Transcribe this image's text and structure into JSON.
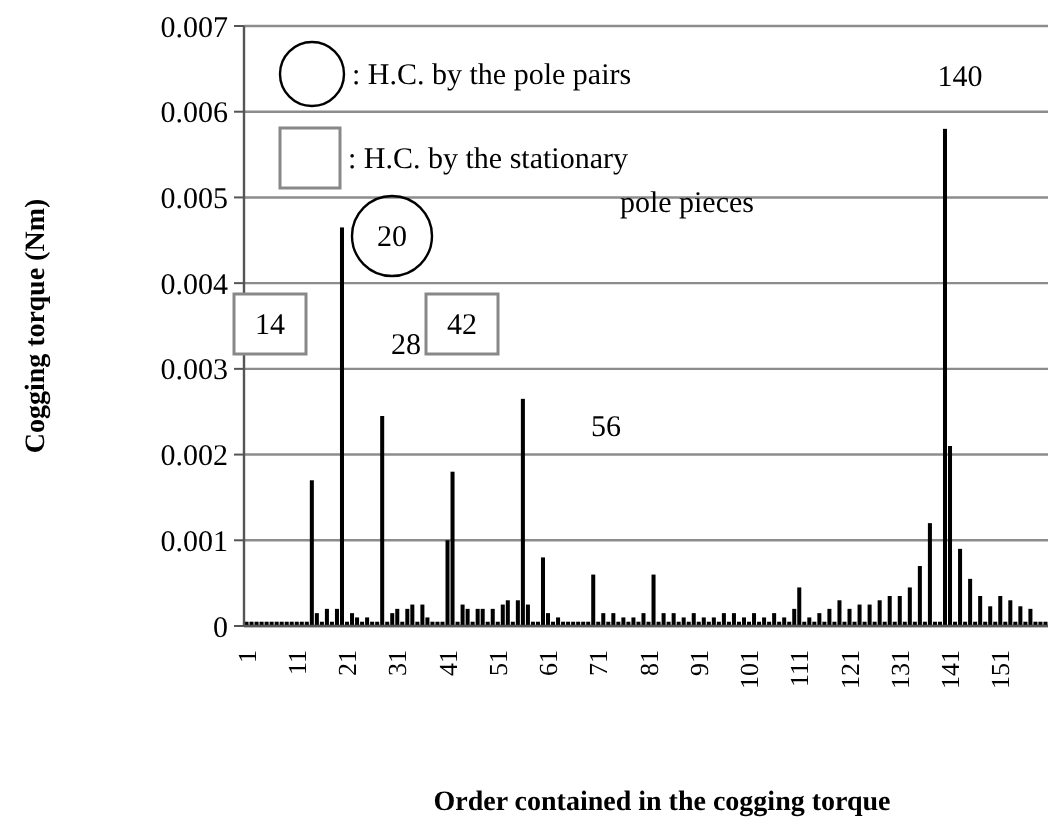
{
  "chart_data": {
    "type": "bar",
    "xlabel": "Order contained in the cogging torque",
    "ylabel": "Cogging torque (Nm)",
    "categories": [
      "1",
      null,
      null,
      null,
      null,
      null,
      null,
      null,
      null,
      null,
      "11",
      null,
      null,
      null,
      null,
      null,
      null,
      null,
      null,
      null,
      "21",
      null,
      null,
      null,
      null,
      null,
      null,
      null,
      null,
      null,
      "31",
      null,
      null,
      null,
      null,
      null,
      null,
      null,
      null,
      null,
      "41",
      null,
      null,
      null,
      null,
      null,
      null,
      null,
      null,
      null,
      "51",
      null,
      null,
      null,
      null,
      null,
      null,
      null,
      null,
      null,
      "61",
      null,
      null,
      null,
      null,
      null,
      null,
      null,
      null,
      null,
      "71",
      null,
      null,
      null,
      null,
      null,
      null,
      null,
      null,
      null,
      "81",
      null,
      null,
      null,
      null,
      null,
      null,
      null,
      null,
      null,
      "91",
      null,
      null,
      null,
      null,
      null,
      null,
      null,
      null,
      null,
      "101",
      null,
      null,
      null,
      null,
      null,
      null,
      null,
      null,
      null,
      "111",
      null,
      null,
      null,
      null,
      null,
      null,
      null,
      null,
      null,
      "121",
      null,
      null,
      null,
      null,
      null,
      null,
      null,
      null,
      null,
      "131",
      null,
      null,
      null,
      null,
      null,
      null,
      null,
      null,
      null,
      "141",
      null,
      null,
      null,
      null,
      null,
      null,
      null,
      null,
      null,
      "151",
      null,
      null,
      null,
      null,
      null,
      null,
      null,
      null,
      null
    ],
    "values": [
      5e-05,
      5e-05,
      5e-05,
      5e-05,
      5e-05,
      5e-05,
      5e-05,
      5e-05,
      5e-05,
      5e-05,
      5e-05,
      5e-05,
      5e-05,
      0.0017,
      0.00015,
      5e-05,
      0.0002,
      5e-05,
      0.0002,
      0.00465,
      5e-05,
      0.00015,
      0.0001,
      5e-05,
      0.0001,
      5e-05,
      5e-05,
      0.00245,
      5e-05,
      0.00015,
      0.0002,
      5e-05,
      0.0002,
      0.00025,
      5e-05,
      0.00025,
      0.0001,
      5e-05,
      5e-05,
      5e-05,
      0.001,
      0.0018,
      5e-05,
      0.00025,
      0.0002,
      5e-05,
      0.0002,
      0.0002,
      5e-05,
      0.0002,
      5e-05,
      0.00025,
      0.0003,
      5e-05,
      0.0003,
      0.00265,
      0.00025,
      5e-05,
      5e-05,
      0.0008,
      0.00015,
      5e-05,
      0.0001,
      5e-05,
      5e-05,
      5e-05,
      5e-05,
      5e-05,
      5e-05,
      0.0006,
      5e-05,
      0.00015,
      5e-05,
      0.00015,
      5e-05,
      0.0001,
      5e-05,
      0.0001,
      5e-05,
      0.00015,
      5e-05,
      0.0006,
      5e-05,
      0.00015,
      5e-05,
      0.00015,
      5e-05,
      0.0001,
      5e-05,
      0.00015,
      5e-05,
      0.0001,
      5e-05,
      0.0001,
      5e-05,
      0.00015,
      5e-05,
      0.00015,
      5e-05,
      0.0001,
      5e-05,
      0.00015,
      5e-05,
      0.0001,
      5e-05,
      0.00015,
      5e-05,
      0.0001,
      5e-05,
      0.0002,
      0.00045,
      5e-05,
      0.0001,
      5e-05,
      0.00015,
      5e-05,
      0.0002,
      5e-05,
      0.0003,
      5e-05,
      0.0002,
      5e-05,
      0.00025,
      5e-05,
      0.00025,
      5e-05,
      0.0003,
      5e-05,
      0.00035,
      5e-05,
      0.00035,
      5e-05,
      0.00045,
      5e-05,
      0.0007,
      5e-05,
      0.0012,
      5e-05,
      5e-05,
      0.0058,
      0.0021,
      5e-05,
      0.0009,
      5e-05,
      0.00055,
      5e-05,
      0.00035,
      5e-05,
      0.00023,
      5e-05,
      0.00035,
      5e-05,
      0.0003,
      5e-05,
      0.00023,
      5e-05,
      0.0002,
      5e-05,
      5e-05,
      5e-05
    ],
    "color": "#000000",
    "ylim": [
      0,
      0.007
    ],
    "yticks": [
      0,
      0.001,
      0.002,
      0.003,
      0.004,
      0.005,
      0.006,
      0.007
    ],
    "grid": "y",
    "annotations": [
      ": H.C. by the pole pairs",
      ": H.C. by the stationary pole pieces",
      "14",
      "20",
      "28",
      "42",
      "56",
      "140"
    ]
  }
}
